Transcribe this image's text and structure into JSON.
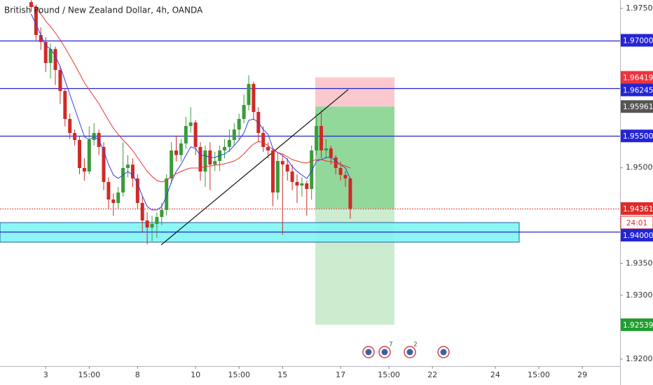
{
  "chart_data": {
    "type": "candlestick",
    "title": "British Pound / New Zealand Dollar, 4h, OANDA",
    "up_color": "#3a9b3a",
    "down_color": "#cf2a27",
    "ylim": [
      1.9189,
      1.97632
    ],
    "yticks": [
      {
        "value": 1.92,
        "label": "1.92000"
      },
      {
        "value": 1.93,
        "label": "1.93000"
      },
      {
        "value": 1.935,
        "label": "1.93500"
      },
      {
        "value": 1.95,
        "label": "1.95000"
      },
      {
        "value": 1.975,
        "label": "1.97500"
      }
    ],
    "categories": [
      null,
      null,
      null,
      null,
      null,
      null,
      null,
      null,
      "3",
      null,
      null,
      null,
      null,
      null,
      null,
      null,
      null,
      "15:00",
      null,
      null,
      null,
      null,
      null,
      null,
      null,
      null,
      null,
      "8",
      null,
      null,
      null,
      null,
      null,
      null,
      null,
      null,
      null,
      null,
      null,
      "10",
      null,
      null,
      null,
      null,
      null,
      null,
      null,
      null,
      "15:00",
      null,
      null,
      null,
      null,
      null,
      null,
      null,
      null,
      "15",
      null,
      null,
      null,
      null,
      null,
      null,
      null,
      null,
      null,
      null,
      null,
      "17",
      null,
      null,
      null,
      null,
      null,
      null,
      null,
      null,
      null,
      "15:00",
      null,
      null,
      null,
      null,
      null,
      null,
      null,
      null,
      "22",
      null,
      null,
      null,
      null,
      null,
      null,
      null,
      null,
      null,
      null,
      null,
      null,
      "24",
      null,
      null,
      null,
      null,
      null,
      null,
      null,
      null,
      "15:00",
      null,
      null,
      null,
      null,
      null,
      null,
      null,
      null,
      "29",
      null
    ],
    "open": [
      null,
      null,
      null,
      null,
      null,
      1.976,
      1.97522,
      1.97083,
      1.96973,
      1.96644,
      1.96864,
      1.96534,
      1.96205,
      1.95766,
      1.95546,
      1.95436,
      1.94997,
      1.94942,
      1.95436,
      1.95546,
      1.95327,
      1.94778,
      1.94503,
      1.94448,
      1.94613,
      1.94997,
      1.9505,
      1.94833,
      1.94448,
      1.94174,
      1.94064,
      1.94119,
      1.94229,
      1.94339,
      1.94833,
      1.95272,
      1.952,
      1.95382,
      1.95656,
      1.95711,
      1.95327,
      1.94942,
      1.95272,
      1.95052,
      1.95107,
      1.95272,
      1.95327,
      1.95436,
      1.95601,
      1.95766,
      1.95985,
      1.96315,
      1.95876,
      1.95546,
      1.95327,
      1.95272,
      1.94613,
      1.95107,
      1.95052,
      1.94942,
      1.94778,
      1.94723,
      1.94756,
      1.94668,
      1.95272,
      1.95656,
      1.95272,
      1.95305,
      1.95162,
      1.94997,
      1.94888,
      1.94833,
      null,
      null,
      null,
      null,
      null,
      null,
      null,
      null,
      null,
      null,
      null,
      null,
      null,
      null,
      null,
      null,
      null,
      null,
      null,
      null,
      null,
      null,
      null,
      null,
      null,
      null,
      null,
      null,
      null,
      null,
      null,
      null,
      null,
      null,
      null,
      null,
      null,
      null,
      null,
      null,
      null,
      null,
      null,
      null,
      null,
      null,
      null,
      null,
      null
    ],
    "high": [
      null,
      null,
      null,
      null,
      null,
      1.9763,
      1.9756,
      1.972,
      1.9705,
      1.9695,
      1.969,
      1.966,
      1.9625,
      1.9585,
      1.956,
      1.955,
      1.9515,
      1.9565,
      1.957,
      1.956,
      1.954,
      1.9485,
      1.946,
      1.947,
      1.954,
      1.952,
      1.9515,
      1.949,
      1.9455,
      1.943,
      1.9425,
      1.943,
      1.9445,
      1.949,
      1.954,
      1.955,
      1.9545,
      1.958,
      1.9595,
      1.9575,
      1.954,
      1.9535,
      1.954,
      1.9525,
      1.9535,
      1.9545,
      1.956,
      1.957,
      1.9585,
      1.9615,
      1.9645,
      1.9635,
      1.9595,
      1.9565,
      1.954,
      1.953,
      1.9525,
      1.952,
      1.9515,
      1.9505,
      1.949,
      1.9485,
      1.948,
      1.9535,
      1.9585,
      1.959,
      1.9545,
      1.9535,
      1.952,
      1.951,
      1.9495,
      1.9485,
      null,
      null,
      null,
      null,
      null,
      null,
      null,
      null,
      null,
      null,
      null,
      null,
      null,
      null,
      null,
      null,
      null,
      null,
      null,
      null,
      null,
      null,
      null,
      null,
      null,
      null,
      null,
      null,
      null,
      null,
      null,
      null,
      null,
      null,
      null,
      null,
      null,
      null,
      null,
      null,
      null,
      null,
      null,
      null,
      null,
      null,
      null,
      null,
      null
    ],
    "low": [
      null,
      null,
      null,
      null,
      null,
      1.9745,
      1.97,
      1.9685,
      1.965,
      1.964,
      1.963,
      1.96,
      1.9565,
      1.9545,
      1.9535,
      1.949,
      1.948,
      1.949,
      1.9535,
      1.952,
      1.9465,
      1.9435,
      1.9425,
      1.9435,
      1.9455,
      1.9485,
      1.947,
      1.9435,
      1.94,
      1.938,
      1.9385,
      1.939,
      1.941,
      1.9425,
      1.9475,
      1.951,
      1.951,
      1.953,
      1.9555,
      1.952,
      1.948,
      1.947,
      1.9465,
      1.9495,
      1.9495,
      1.9515,
      1.9525,
      1.9535,
      1.9545,
      1.957,
      1.959,
      1.9575,
      1.954,
      1.9525,
      1.9515,
      1.944,
      1.945,
      1.9395,
      1.948,
      1.9465,
      1.9445,
      1.9455,
      1.9425,
      1.945,
      1.952,
      1.9515,
      1.9515,
      1.9505,
      1.949,
      1.948,
      1.947,
      1.942,
      null,
      null,
      null,
      null,
      null,
      null,
      null,
      null,
      null,
      null,
      null,
      null,
      null,
      null,
      null,
      null,
      null,
      null,
      null,
      null,
      null,
      null,
      null,
      null,
      null,
      null,
      null,
      null,
      null,
      null,
      null,
      null,
      null,
      null,
      null,
      null,
      null,
      null,
      null,
      null,
      null,
      null,
      null,
      null,
      null,
      null,
      null,
      null,
      null
    ],
    "close": [
      null,
      null,
      null,
      null,
      null,
      1.97522,
      1.97083,
      1.96973,
      1.96644,
      1.96864,
      1.96534,
      1.96205,
      1.95766,
      1.95546,
      1.95436,
      1.94997,
      1.94942,
      1.95436,
      1.95546,
      1.95327,
      1.94778,
      1.94503,
      1.94448,
      1.94613,
      1.94997,
      1.9505,
      1.94833,
      1.94448,
      1.94174,
      1.94064,
      1.94119,
      1.94229,
      1.94339,
      1.94833,
      1.95272,
      1.952,
      1.95382,
      1.95656,
      1.95711,
      1.95327,
      1.94942,
      1.95272,
      1.95052,
      1.95107,
      1.95272,
      1.95327,
      1.95436,
      1.95601,
      1.95766,
      1.95985,
      1.96315,
      1.95876,
      1.95546,
      1.95327,
      1.95272,
      1.94613,
      1.95107,
      1.95052,
      1.94942,
      1.94778,
      1.94723,
      1.94756,
      1.94668,
      1.95272,
      1.95656,
      1.95272,
      1.95305,
      1.95162,
      1.94997,
      1.94888,
      1.94833,
      1.94361,
      null,
      null,
      null,
      null,
      null,
      null,
      null,
      null,
      null,
      null,
      null,
      null,
      null,
      null,
      null,
      null,
      null,
      null,
      null,
      null,
      null,
      null,
      null,
      null,
      null,
      null,
      null,
      null,
      null,
      null,
      null,
      null,
      null,
      null,
      null,
      null,
      null,
      null,
      null,
      null,
      null,
      null,
      null,
      null,
      null,
      null,
      null,
      null,
      null
    ],
    "moving_averages": [
      {
        "color": "#2f3ee8",
        "values": [
          null,
          null,
          null,
          null,
          null,
          1.97412,
          1.97248,
          1.97083,
          1.96918,
          1.96864,
          1.96754,
          1.96589,
          1.9637,
          1.9615,
          1.9593,
          1.95711,
          1.95491,
          1.95436,
          1.95491,
          1.95436,
          1.95272,
          1.95052,
          1.94887,
          1.94833,
          1.94887,
          1.94942,
          1.94887,
          1.94756,
          1.94558,
          1.94393,
          1.94339,
          1.94339,
          1.94393,
          1.94558,
          1.94778,
          1.94942,
          1.95052,
          1.95195,
          1.95327,
          1.95305,
          1.95195,
          1.95195,
          1.95162,
          1.95162,
          1.95195,
          1.95217,
          1.95272,
          1.95349,
          1.95436,
          1.95546,
          1.95744,
          1.95766,
          1.95711,
          1.95601,
          1.95524,
          1.95305,
          1.95239,
          1.95195,
          1.95129,
          1.95019,
          1.94942,
          1.94887,
          1.94833,
          1.94942,
          1.95107,
          1.95129,
          1.95162,
          1.95162,
          1.95107,
          1.95052,
          1.94997,
          1.94833,
          null,
          null,
          null,
          null,
          null,
          null,
          null,
          null,
          null,
          null,
          null,
          null,
          null,
          null,
          null,
          null,
          null,
          null,
          null,
          null,
          null,
          null,
          null,
          null,
          null,
          null,
          null,
          null,
          null,
          null,
          null,
          null,
          null,
          null,
          null,
          null,
          null,
          null,
          null,
          null,
          null,
          null,
          null,
          null,
          null,
          null,
          null,
          null,
          null
        ]
      },
      {
        "color": "#e8362c",
        "values": [
          null,
          null,
          null,
          null,
          null,
          1.97577,
          1.975,
          1.97412,
          1.97303,
          1.97215,
          1.97116,
          1.97006,
          1.96885,
          1.96754,
          1.96622,
          1.96479,
          1.96337,
          1.96227,
          1.96117,
          1.96007,
          1.95875,
          1.95744,
          1.95623,
          1.95524,
          1.95436,
          1.95359,
          1.95272,
          1.95162,
          1.95052,
          1.94942,
          1.94865,
          1.948,
          1.94778,
          1.948,
          1.94865,
          1.94907,
          1.94942,
          1.94975,
          1.94997,
          1.94997,
          1.94997,
          1.95019,
          1.9503,
          1.95041,
          1.95052,
          1.95063,
          1.95085,
          1.95107,
          1.95151,
          1.95217,
          1.95305,
          1.95371,
          1.95415,
          1.95393,
          1.95349,
          1.95283,
          1.95239,
          1.95217,
          1.95173,
          1.95129,
          1.95107,
          1.95085,
          1.95074,
          1.95107,
          1.95129,
          1.95129,
          1.95107,
          1.95096,
          1.95074,
          1.95052,
          1.9503,
          1.94997,
          null,
          null,
          null,
          null,
          null,
          null,
          null,
          null,
          null,
          null,
          null,
          null,
          null,
          null,
          null,
          null,
          null,
          null,
          null,
          null,
          null,
          null,
          null,
          null,
          null,
          null,
          null,
          null,
          null,
          null,
          null,
          null,
          null,
          null,
          null,
          null,
          null,
          null,
          null,
          null,
          null,
          null,
          null,
          null,
          null,
          null,
          null,
          null,
          null
        ]
      }
    ],
    "levels": [
      {
        "value": 1.97,
        "label": "1.97000",
        "color": "#2424d6",
        "line": "solid"
      },
      {
        "value": 1.96419,
        "label": "1.96419",
        "color": "#f0333d"
      },
      {
        "value": 1.96245,
        "label": "1.96245",
        "color": "#2424d6",
        "line": "solid"
      },
      {
        "value": 1.95961,
        "label": "1.95961",
        "color": "#555555"
      },
      {
        "value": 1.955,
        "label": "1.95500",
        "color": "#2424d6",
        "line": "solid"
      },
      {
        "value": 1.94361,
        "label": "1.94361",
        "color": "#e02a2a",
        "line": "dotted"
      },
      {
        "value": 1.94,
        "label": "1.94000",
        "color": "#2424d6",
        "line": "solid"
      },
      {
        "value": 1.92539,
        "label": "1.92539",
        "color": "#1f9e2f"
      }
    ],
    "countdown": "24:01",
    "zone": [
      1.93834,
      1.94141
    ],
    "trendline": [
      1.9379,
      1.96227
    ],
    "event_counts": [
      "7",
      "2"
    ]
  }
}
